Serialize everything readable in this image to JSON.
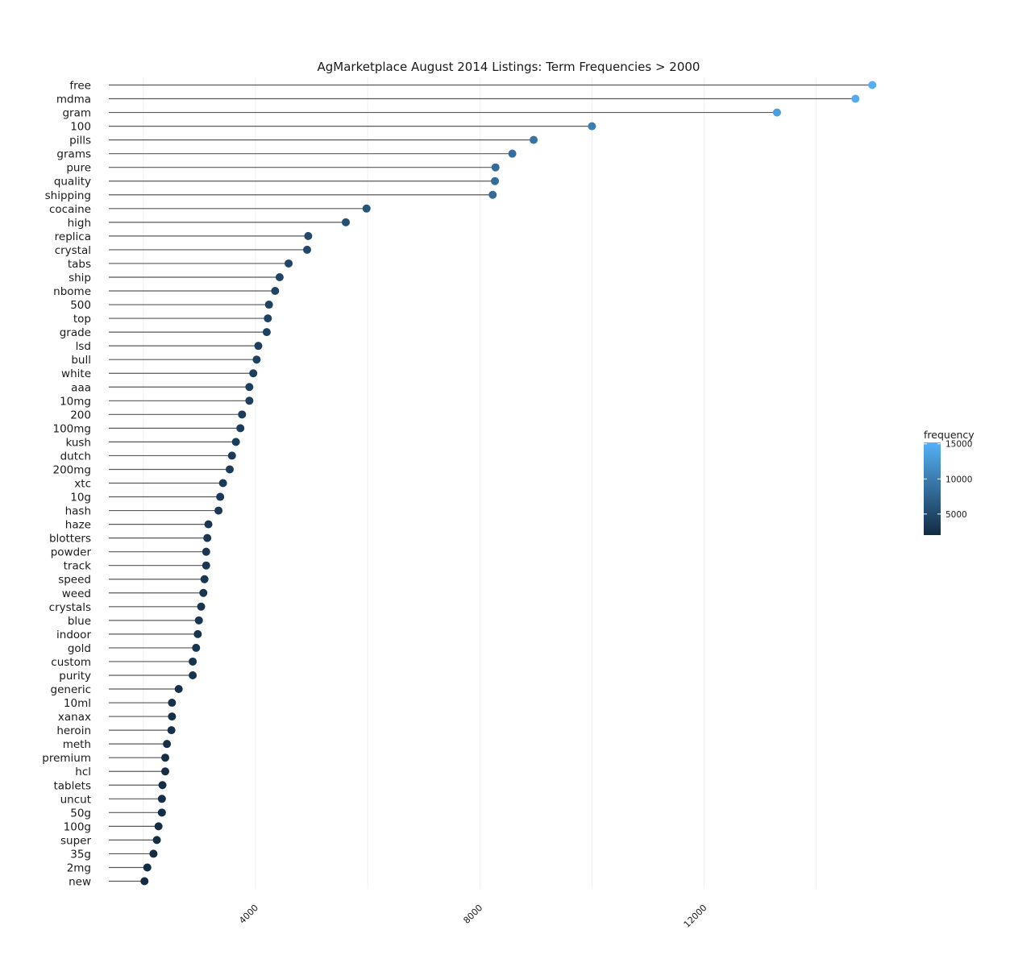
{
  "chart_data": {
    "type": "lollipop",
    "title": "AgMarketplace August 2014 Listings: Term Frequencies > 2000",
    "xlabel": "",
    "ylabel": "",
    "x_ticks": [
      "4000",
      "8000",
      "12000"
    ],
    "xlim": [
      1400,
      15200
    ],
    "grid": true,
    "legend": {
      "title": "frequency",
      "position": "right",
      "ticks": [
        "5000",
        "10000",
        "15000"
      ],
      "range": [
        2000,
        15200
      ],
      "color_low": "#132b43",
      "color_high": "#56b1f7"
    },
    "categories": [
      "free",
      "mdma",
      "gram",
      "100",
      "pills",
      "grams",
      "pure",
      "quality",
      "shipping",
      "cocaine",
      "high",
      "replica",
      "crystal",
      "tabs",
      "ship",
      "nbome",
      "500",
      "top",
      "grade",
      "lsd",
      "bull",
      "white",
      "aaa",
      "10mg",
      "200",
      "100mg",
      "kush",
      "dutch",
      "200mg",
      "xtc",
      "10g",
      "hash",
      "haze",
      "blotters",
      "powder",
      "track",
      "speed",
      "weed",
      "crystals",
      "blue",
      "indoor",
      "gold",
      "custom",
      "purity",
      "generic",
      "10ml",
      "xanax",
      "heroin",
      "meth",
      "premium",
      "hcl",
      "tablets",
      "uncut",
      "50g",
      "100g",
      "super",
      "35g",
      "2mg",
      "new"
    ],
    "values": [
      15000,
      14700,
      13300,
      10000,
      8960,
      8580,
      8280,
      8270,
      8230,
      5980,
      5610,
      4940,
      4920,
      4590,
      4430,
      4350,
      4240,
      4220,
      4200,
      4050,
      4020,
      3960,
      3890,
      3890,
      3760,
      3730,
      3650,
      3580,
      3540,
      3420,
      3370,
      3340,
      3160,
      3140,
      3120,
      3120,
      3090,
      3070,
      3030,
      2990,
      2970,
      2940,
      2880,
      2880,
      2630,
      2510,
      2510,
      2500,
      2420,
      2390,
      2390,
      2340,
      2330,
      2330,
      2270,
      2240,
      2180,
      2070,
      2020
    ],
    "line_color": "#595959"
  }
}
